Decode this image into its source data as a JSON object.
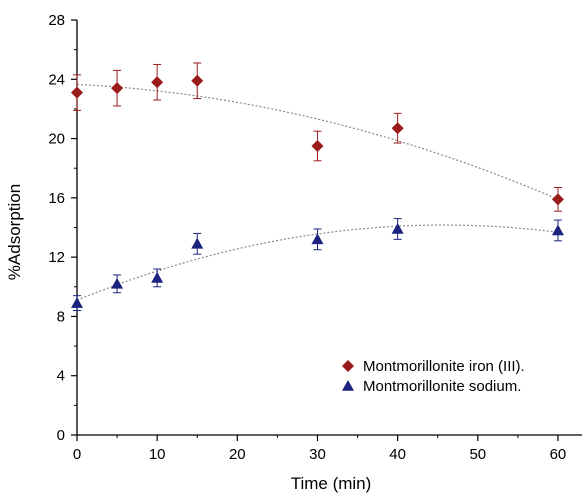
{
  "chart_data": {
    "type": "scatter",
    "xlabel": "Time (min)",
    "ylabel": "%Adsorption",
    "xlim": [
      0,
      63
    ],
    "ylim": [
      0,
      28
    ],
    "xticks": [
      0,
      10,
      20,
      30,
      40,
      50,
      60
    ],
    "yticks": [
      0,
      4,
      8,
      12,
      16,
      20,
      24,
      28
    ],
    "legend_position": "bottom-right",
    "grid": false,
    "series": [
      {
        "name": "Montmorillonite iron (III).",
        "marker": "diamond",
        "color": "#9b1b1b",
        "x": [
          0,
          5,
          10,
          15,
          30,
          40,
          60
        ],
        "y": [
          23.1,
          23.4,
          23.8,
          23.9,
          19.5,
          20.7,
          15.9
        ],
        "error": [
          1.2,
          1.2,
          1.2,
          1.2,
          1.0,
          1.0,
          0.8
        ],
        "trend": "quadratic fit, from 23.6 at 0 to 16.0 at 60"
      },
      {
        "name": "Montmorillonite sodium.",
        "marker": "triangle",
        "color": "#1a237e",
        "x": [
          0,
          5,
          10,
          15,
          30,
          40,
          60
        ],
        "y": [
          8.9,
          10.2,
          10.6,
          12.9,
          13.2,
          13.9,
          13.8
        ],
        "error": [
          0.5,
          0.6,
          0.6,
          0.7,
          0.7,
          0.7,
          0.7
        ],
        "trend": "quadratic fit, from 9.0 at 0 to 13.7 at 60"
      }
    ]
  }
}
